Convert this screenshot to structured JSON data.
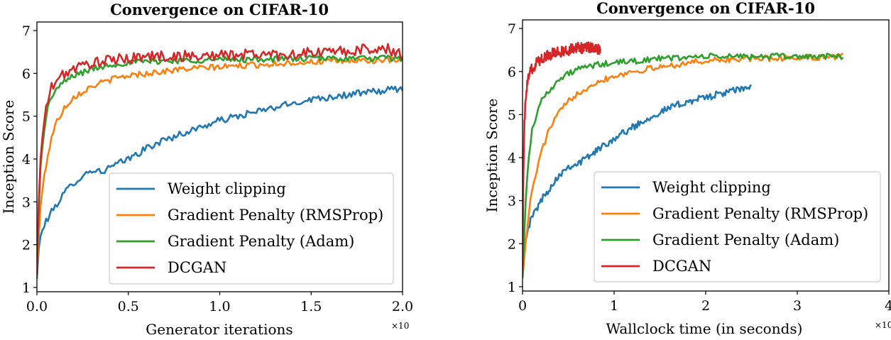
{
  "chart_data": [
    {
      "type": "line",
      "title": "Convergence on CIFAR-10",
      "xlabel": "Generator iterations",
      "ylabel": "Inception Score",
      "x_multiplier": "×10",
      "xlim": [
        0,
        2.0
      ],
      "ylim": [
        0.9,
        7.2
      ],
      "xticks": [
        "0.0",
        "0.5",
        "1.0",
        "1.5",
        "2.0"
      ],
      "xtick_values": [
        0,
        0.5,
        1.0,
        1.5,
        2.0
      ],
      "yticks": [
        "1",
        "2",
        "3",
        "4",
        "5",
        "6",
        "7"
      ],
      "ytick_values": [
        1,
        2,
        3,
        4,
        5,
        6,
        7
      ],
      "legend_position": "lower-right",
      "series": [
        {
          "name": "Weight clipping",
          "color": "#1f77b4",
          "x": [
            0,
            0.01,
            0.02,
            0.05,
            0.1,
            0.15,
            0.2,
            0.25,
            0.3,
            0.35,
            0.4,
            0.5,
            0.6,
            0.7,
            0.8,
            0.9,
            1.0,
            1.1,
            1.2,
            1.3,
            1.4,
            1.5,
            1.6,
            1.7,
            1.8,
            1.9,
            2.0
          ],
          "y": [
            1.2,
            1.9,
            2.2,
            2.55,
            2.9,
            3.2,
            3.45,
            3.6,
            3.75,
            3.7,
            3.8,
            4.0,
            4.25,
            4.45,
            4.6,
            4.75,
            4.9,
            5.0,
            5.1,
            5.2,
            5.3,
            5.4,
            5.45,
            5.5,
            5.55,
            5.6,
            5.65
          ],
          "noise": 0.08
        },
        {
          "name": "Gradient Penalty (RMSProp)",
          "color": "#ff7f0e",
          "x": [
            0,
            0.01,
            0.02,
            0.04,
            0.06,
            0.08,
            0.1,
            0.15,
            0.2,
            0.3,
            0.4,
            0.5,
            0.6,
            0.8,
            1.0,
            1.2,
            1.4,
            1.6,
            1.8,
            2.0
          ],
          "y": [
            1.2,
            2.2,
            2.9,
            3.6,
            4.1,
            4.5,
            4.8,
            5.2,
            5.45,
            5.7,
            5.85,
            5.95,
            6.0,
            6.1,
            6.15,
            6.2,
            6.25,
            6.28,
            6.3,
            6.3
          ],
          "noise": 0.07
        },
        {
          "name": "Gradient Penalty (Adam)",
          "color": "#2ca02c",
          "x": [
            0,
            0.01,
            0.02,
            0.04,
            0.06,
            0.08,
            0.1,
            0.15,
            0.2,
            0.3,
            0.4,
            0.5,
            0.6,
            0.8,
            1.0,
            1.2,
            1.4,
            1.6,
            1.8,
            2.0
          ],
          "y": [
            1.2,
            2.8,
            3.8,
            4.7,
            5.2,
            5.45,
            5.6,
            5.8,
            5.95,
            6.1,
            6.2,
            6.25,
            6.28,
            6.3,
            6.32,
            6.33,
            6.34,
            6.35,
            6.35,
            6.35
          ],
          "noise": 0.07
        },
        {
          "name": "DCGAN",
          "color": "#d62728",
          "x": [
            0,
            0.01,
            0.02,
            0.04,
            0.06,
            0.08,
            0.1,
            0.15,
            0.2,
            0.3,
            0.4,
            0.5,
            0.6,
            0.8,
            1.0,
            1.2,
            1.4,
            1.6,
            1.8,
            1.9,
            2.0
          ],
          "y": [
            1.3,
            3.0,
            4.0,
            4.9,
            5.4,
            5.65,
            5.8,
            6.0,
            6.1,
            6.25,
            6.3,
            6.35,
            6.4,
            6.4,
            6.42,
            6.45,
            6.45,
            6.5,
            6.55,
            6.6,
            6.4
          ],
          "noise": 0.13
        }
      ]
    },
    {
      "type": "line",
      "title": "Convergence on CIFAR-10",
      "xlabel": "Wallclock time (in seconds)",
      "ylabel": "Inception Score",
      "x_multiplier": "×10",
      "xlim": [
        0,
        4
      ],
      "ylim": [
        0.9,
        7.2
      ],
      "xticks": [
        "0",
        "1",
        "2",
        "3",
        "4"
      ],
      "xtick_values": [
        0,
        1,
        2,
        3,
        4
      ],
      "yticks": [
        "1",
        "2",
        "3",
        "4",
        "5",
        "6",
        "7"
      ],
      "ytick_values": [
        1,
        2,
        3,
        4,
        5,
        6,
        7
      ],
      "legend_position": "lower-right",
      "series": [
        {
          "name": "Weight clipping",
          "color": "#1f77b4",
          "x": [
            0,
            0.02,
            0.05,
            0.1,
            0.2,
            0.3,
            0.4,
            0.5,
            0.6,
            0.7,
            0.8,
            0.9,
            1.0,
            1.2,
            1.4,
            1.6,
            1.8,
            2.0,
            2.2,
            2.4,
            2.5
          ],
          "y": [
            1.2,
            2.0,
            2.3,
            2.6,
            3.0,
            3.3,
            3.6,
            3.8,
            3.85,
            4.0,
            4.15,
            4.3,
            4.45,
            4.7,
            4.95,
            5.15,
            5.3,
            5.4,
            5.5,
            5.6,
            5.65
          ],
          "noise": 0.08
        },
        {
          "name": "Gradient Penalty (RMSProp)",
          "color": "#ff7f0e",
          "x": [
            0,
            0.05,
            0.1,
            0.2,
            0.3,
            0.4,
            0.5,
            0.6,
            0.8,
            1.0,
            1.2,
            1.5,
            1.8,
            2.0,
            2.5,
            3.0,
            3.5
          ],
          "y": [
            1.2,
            2.4,
            3.2,
            4.1,
            4.7,
            5.05,
            5.3,
            5.5,
            5.75,
            5.9,
            6.0,
            6.1,
            6.2,
            6.25,
            6.3,
            6.32,
            6.35
          ],
          "noise": 0.07
        },
        {
          "name": "Gradient Penalty (Adam)",
          "color": "#2ca02c",
          "x": [
            0,
            0.03,
            0.05,
            0.1,
            0.15,
            0.2,
            0.3,
            0.4,
            0.5,
            0.6,
            0.8,
            1.0,
            1.5,
            2.0,
            2.5,
            3.0,
            3.5
          ],
          "y": [
            1.2,
            2.8,
            3.6,
            4.6,
            5.0,
            5.3,
            5.6,
            5.8,
            5.95,
            6.05,
            6.15,
            6.2,
            6.3,
            6.35,
            6.35,
            6.35,
            6.35
          ],
          "noise": 0.07
        },
        {
          "name": "DCGAN",
          "color": "#d62728",
          "x": [
            0,
            0.01,
            0.02,
            0.04,
            0.06,
            0.08,
            0.1,
            0.15,
            0.2,
            0.3,
            0.4,
            0.5,
            0.6,
            0.7,
            0.8,
            0.85
          ],
          "y": [
            1.4,
            3.8,
            4.8,
            5.5,
            5.8,
            5.95,
            6.05,
            6.2,
            6.3,
            6.4,
            6.45,
            6.5,
            6.55,
            6.55,
            6.55,
            6.5
          ],
          "noise": 0.13
        }
      ]
    }
  ]
}
